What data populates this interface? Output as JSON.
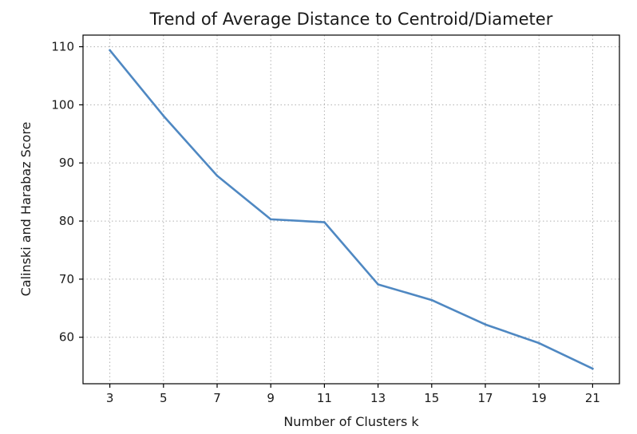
{
  "chart_data": {
    "type": "line",
    "title": "Trend of Average Distance to Centroid/Diameter",
    "xlabel": "Number of Clusters k",
    "ylabel": "Calinski and Harabaz Score",
    "x": [
      3,
      5,
      7,
      9,
      11,
      13,
      15,
      17,
      19,
      21
    ],
    "series": [
      {
        "values": [
          109.4,
          98.1,
          87.8,
          80.3,
          79.8,
          69.1,
          66.4,
          62.2,
          59.0,
          54.6
        ]
      }
    ],
    "xticks": [
      "3",
      "5",
      "7",
      "9",
      "11",
      "13",
      "15",
      "17",
      "19",
      "21"
    ],
    "yticks": [
      "60",
      "70",
      "80",
      "90",
      "100",
      "110"
    ],
    "xlim": [
      2,
      22
    ],
    "ylim": [
      52,
      112
    ],
    "grid": true,
    "line_color": "#4f88c2"
  }
}
